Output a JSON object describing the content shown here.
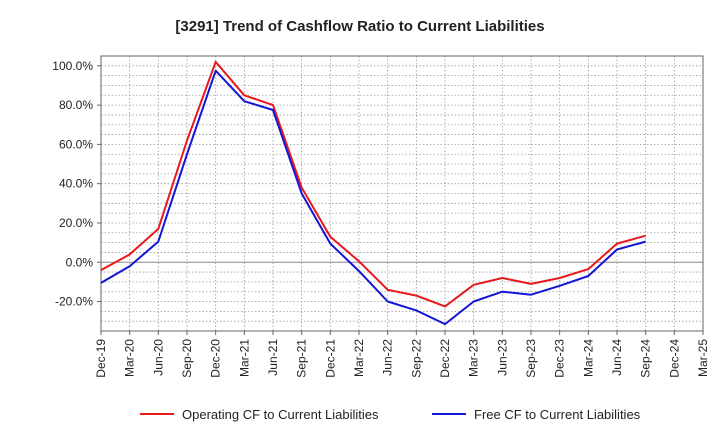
{
  "chart_data": {
    "type": "line",
    "title": "[3291]  Trend of Cashflow Ratio to Current Liabilities",
    "xlabel": "",
    "ylabel": "",
    "ylim": [
      -35,
      105
    ],
    "y_ticks": [
      100,
      80,
      60,
      40,
      20,
      0,
      -20
    ],
    "y_tick_labels": [
      "100.0%",
      "80.0%",
      "60.0%",
      "40.0%",
      "20.0%",
      "0.0%",
      "-20.0%"
    ],
    "x_tick_labels": [
      "Dec-19",
      "Mar-20",
      "Jun-20",
      "Sep-20",
      "Dec-20",
      "Mar-21",
      "Jun-21",
      "Sep-21",
      "Dec-21",
      "Mar-22",
      "Jun-22",
      "Sep-22",
      "Dec-22",
      "Mar-23",
      "Jun-23",
      "Sep-23",
      "Dec-23",
      "Mar-24",
      "Jun-24",
      "Sep-24",
      "Dec-24",
      "Mar-25"
    ],
    "x_tick_step": 1,
    "grid": true,
    "legend_position": "bottom",
    "series": [
      {
        "name": "Operating CF to Current Liabilities",
        "color": "#e8191b",
        "values": [
          -4.0,
          4.0,
          17.0,
          62.0,
          102.0,
          85.0,
          80.0,
          38.0,
          13.0,
          0.5,
          -14.0,
          -17.0,
          -22.5,
          -11.5,
          -8.0,
          -11.0,
          -8.0,
          -3.5,
          9.5,
          13.5
        ]
      },
      {
        "name": "Free CF to Current Liabilities",
        "color": "#1515d6",
        "values": [
          -10.5,
          -2.0,
          10.5,
          55.0,
          97.5,
          82.0,
          77.5,
          35.0,
          9.5,
          -4.5,
          -20.0,
          -24.5,
          -31.5,
          -20.0,
          -15.0,
          -16.5,
          -12.0,
          -7.0,
          6.5,
          10.5
        ]
      }
    ]
  }
}
